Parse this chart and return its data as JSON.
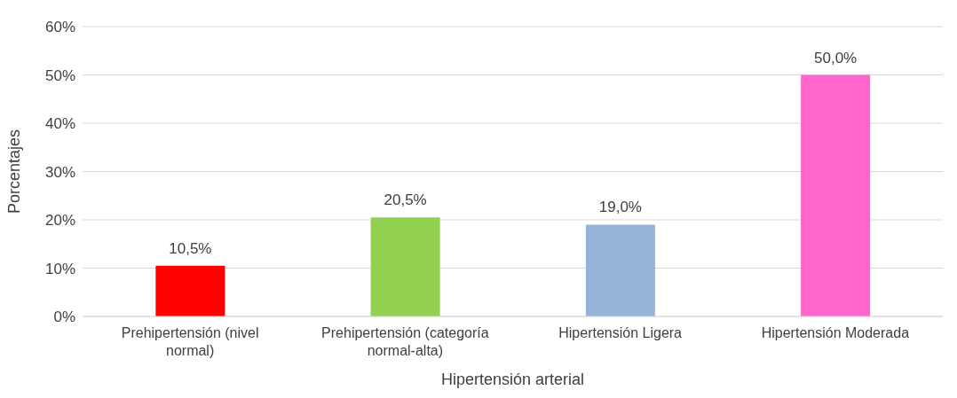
{
  "chart_data": {
    "type": "bar",
    "xlabel": "Hipertensión arterial",
    "ylabel": "Porcentajes",
    "categories": [
      "Prehipertensión (nivel normal)",
      "Prehipertensión (categoría normal-alta)",
      "Hipertensión Ligera",
      "Hipertensión Moderada"
    ],
    "values": [
      10.5,
      20.5,
      19.0,
      50.0
    ],
    "colors": [
      "#ff0000",
      "#92d050",
      "#95b3d7",
      "#ff66cc"
    ],
    "value_labels": [
      "10,5%",
      "20,5%",
      "19,0%",
      "50,0%"
    ],
    "ylim": [
      0,
      60
    ],
    "yticks": [
      {
        "value": 0,
        "label": "0%"
      },
      {
        "value": 10,
        "label": "10%"
      },
      {
        "value": 20,
        "label": "20%"
      },
      {
        "value": 30,
        "label": "30%"
      },
      {
        "value": 40,
        "label": "40%"
      },
      {
        "value": 50,
        "label": "50%"
      },
      {
        "value": 60,
        "label": "60%"
      }
    ],
    "grid": "y",
    "legend": false
  }
}
